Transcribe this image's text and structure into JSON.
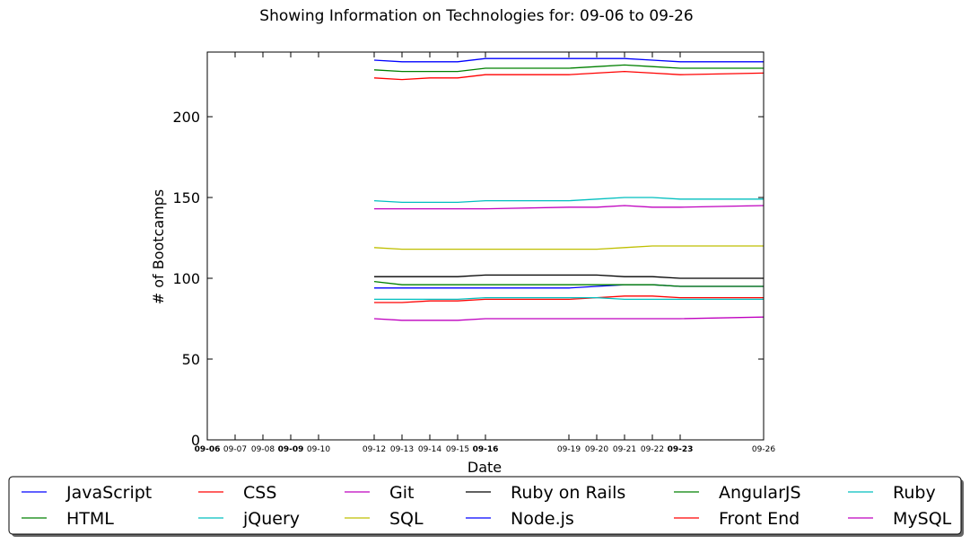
{
  "chart_data": {
    "type": "line",
    "title": "Showing Information on Technologies for: 09-06 to 09-26",
    "xlabel": "Date",
    "ylabel": "# of Bootcamps",
    "xlim": [
      0,
      20
    ],
    "ylim": [
      0,
      240
    ],
    "yticks": [
      0,
      50,
      100,
      150,
      200
    ],
    "xticks": [
      {
        "day": 0,
        "label": "09-06",
        "bold": true
      },
      {
        "day": 1,
        "label": "09-07",
        "bold": false
      },
      {
        "day": 2,
        "label": "09-08",
        "bold": false
      },
      {
        "day": 3,
        "label": "09-09",
        "bold": true
      },
      {
        "day": 4,
        "label": "09-10",
        "bold": false
      },
      {
        "day": 6,
        "label": "09-12",
        "bold": false
      },
      {
        "day": 7,
        "label": "09-13",
        "bold": false
      },
      {
        "day": 8,
        "label": "09-14",
        "bold": false
      },
      {
        "day": 9,
        "label": "09-15",
        "bold": false
      },
      {
        "day": 10,
        "label": "09-16",
        "bold": true
      },
      {
        "day": 13,
        "label": "09-19",
        "bold": false
      },
      {
        "day": 14,
        "label": "09-20",
        "bold": false
      },
      {
        "day": 15,
        "label": "09-21",
        "bold": false
      },
      {
        "day": 16,
        "label": "09-22",
        "bold": false
      },
      {
        "day": 17,
        "label": "09-23",
        "bold": true
      },
      {
        "day": 20,
        "label": "09-26",
        "bold": false
      }
    ],
    "x": [
      6,
      7,
      8,
      9,
      10,
      13,
      14,
      15,
      16,
      17,
      20
    ],
    "legend_placement": "bottom",
    "grid": false,
    "series": [
      {
        "name": "JavaScript",
        "color": "#0000ff",
        "values": [
          235,
          234,
          234,
          234,
          236,
          236,
          236,
          236,
          235,
          234,
          234
        ]
      },
      {
        "name": "HTML",
        "color": "#008000",
        "values": [
          229,
          228,
          228,
          228,
          230,
          230,
          231,
          232,
          231,
          230,
          230
        ]
      },
      {
        "name": "CSS",
        "color": "#ff0000",
        "values": [
          224,
          223,
          224,
          224,
          226,
          226,
          227,
          228,
          227,
          226,
          227
        ]
      },
      {
        "name": "jQuery",
        "color": "#00bfbf",
        "values": [
          148,
          147,
          147,
          147,
          148,
          148,
          149,
          150,
          150,
          149,
          149
        ]
      },
      {
        "name": "Git",
        "color": "#bf00bf",
        "values": [
          143,
          143,
          143,
          143,
          143,
          144,
          144,
          145,
          144,
          144,
          145
        ]
      },
      {
        "name": "SQL",
        "color": "#bfbf00",
        "values": [
          119,
          118,
          118,
          118,
          118,
          118,
          118,
          119,
          120,
          120,
          120
        ]
      },
      {
        "name": "Ruby on Rails",
        "color": "#000000",
        "values": [
          101,
          101,
          101,
          101,
          102,
          102,
          102,
          101,
          101,
          100,
          100
        ]
      },
      {
        "name": "Node.js",
        "color": "#0000ff",
        "values": [
          94,
          94,
          94,
          94,
          94,
          94,
          95,
          96,
          96,
          95,
          95
        ]
      },
      {
        "name": "AngularJS",
        "color": "#008000",
        "values": [
          98,
          96,
          96,
          96,
          96,
          96,
          96,
          96,
          96,
          95,
          95
        ]
      },
      {
        "name": "Front End",
        "color": "#ff0000",
        "values": [
          85,
          85,
          86,
          86,
          87,
          87,
          88,
          89,
          89,
          88,
          88
        ]
      },
      {
        "name": "Ruby",
        "color": "#00bfbf",
        "values": [
          87,
          87,
          87,
          87,
          88,
          88,
          88,
          87,
          87,
          87,
          87
        ]
      },
      {
        "name": "MySQL",
        "color": "#bf00bf",
        "values": [
          75,
          74,
          74,
          74,
          75,
          75,
          75,
          75,
          75,
          75,
          76
        ]
      }
    ]
  }
}
